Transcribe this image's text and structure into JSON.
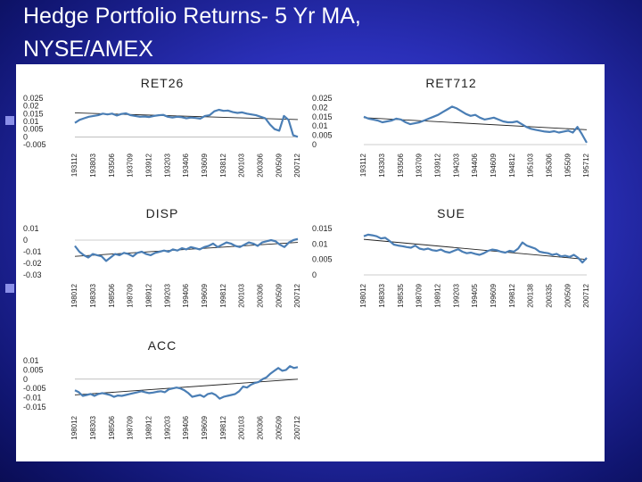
{
  "slide": {
    "title_line1": "Hedge Portfolio Returns- 5 Yr MA,",
    "title_line2": "NYSE/AMEX"
  },
  "colors": {
    "series": "#4a7eb5",
    "trend": "#222222",
    "axis_text": "#222222"
  },
  "chart_data": [
    {
      "type": "line",
      "title": "RET26",
      "ylim": [
        -0.005,
        0.025
      ],
      "yticks": [
        "0.025",
        "0.02",
        "0.015",
        "0.01",
        "0.005",
        "0",
        "-0.005"
      ],
      "xticks": [
        "193112",
        "193803",
        "193506",
        "193709",
        "193912",
        "193203",
        "193406",
        "193609",
        "193812",
        "200103",
        "200306",
        "200509",
        "200712"
      ],
      "series": [
        {
          "values": [
            0.009,
            0.011,
            0.012,
            0.013,
            0.0135,
            0.014,
            0.015,
            0.0145,
            0.015,
            0.0138,
            0.0148,
            0.0152,
            0.014,
            0.0135,
            0.013,
            0.0132,
            0.0128,
            0.0135,
            0.014,
            0.0142,
            0.013,
            0.0125,
            0.013,
            0.0127,
            0.012,
            0.0125,
            0.0122,
            0.0118,
            0.0135,
            0.014,
            0.0165,
            0.0175,
            0.0168,
            0.017,
            0.016,
            0.0155,
            0.0158,
            0.015,
            0.0145,
            0.014,
            0.013,
            0.012,
            0.008,
            0.005,
            0.004,
            0.0135,
            0.011,
            0.001,
            0.0
          ]
        }
      ],
      "trend": [
        0.0155,
        0.0112
      ]
    },
    {
      "type": "line",
      "title": "RET712",
      "ylim": [
        0,
        0.025
      ],
      "yticks": [
        "0.025",
        "0.02",
        "0.015",
        "0.01",
        "0.005",
        "0"
      ],
      "xticks": [
        "193112",
        "193303",
        "193506",
        "193709",
        "193912",
        "194203",
        "194406",
        "194609",
        "194812",
        "195103",
        "195306",
        "195509",
        "195712"
      ],
      "series": [
        {
          "values": [
            0.015,
            0.014,
            0.0135,
            0.013,
            0.012,
            0.0125,
            0.013,
            0.014,
            0.0135,
            0.012,
            0.011,
            0.0115,
            0.012,
            0.013,
            0.014,
            0.015,
            0.016,
            0.0175,
            0.019,
            0.0205,
            0.0195,
            0.018,
            0.0165,
            0.0155,
            0.016,
            0.0145,
            0.0135,
            0.014,
            0.0145,
            0.0135,
            0.0125,
            0.012,
            0.012,
            0.0125,
            0.011,
            0.0095,
            0.0085,
            0.008,
            0.0075,
            0.007,
            0.0068,
            0.0072,
            0.0065,
            0.007,
            0.0075,
            0.0065,
            0.0095,
            0.0055,
            0.001
          ]
        }
      ],
      "trend": [
        0.0145,
        0.008
      ]
    },
    {
      "type": "line",
      "title": "DISP",
      "ylim": [
        -0.03,
        0.01
      ],
      "yticks": [
        "0.01",
        "0",
        "-0.01",
        "-0.02",
        "-0.03"
      ],
      "xticks": [
        "198012",
        "198303",
        "198506",
        "198709",
        "198912",
        "199203",
        "199406",
        "199609",
        "199812",
        "200103",
        "200306",
        "200509",
        "200712"
      ],
      "series": [
        {
          "values": [
            -0.005,
            -0.01,
            -0.013,
            -0.015,
            -0.012,
            -0.013,
            -0.014,
            -0.018,
            -0.015,
            -0.012,
            -0.013,
            -0.011,
            -0.012,
            -0.014,
            -0.011,
            -0.01,
            -0.012,
            -0.013,
            -0.011,
            -0.01,
            -0.009,
            -0.01,
            -0.008,
            -0.009,
            -0.007,
            -0.008,
            -0.006,
            -0.007,
            -0.008,
            -0.006,
            -0.005,
            -0.003,
            -0.006,
            -0.004,
            -0.002,
            -0.003,
            -0.005,
            -0.006,
            -0.004,
            -0.002,
            -0.003,
            -0.005,
            -0.002,
            -0.001,
            0.0,
            -0.001,
            -0.004,
            -0.006,
            -0.002,
            0.0,
            0.001
          ]
        }
      ],
      "trend": [
        -0.014,
        -0.002
      ]
    },
    {
      "type": "line",
      "title": "SUE",
      "ylim": [
        0,
        0.015
      ],
      "yticks": [
        "0.015",
        "0.01",
        "0.005",
        "0"
      ],
      "xticks": [
        "198012",
        "198303",
        "198535",
        "198709",
        "198912",
        "199203",
        "199405",
        "199609",
        "199812",
        "200138",
        "200335",
        "200509",
        "200712"
      ],
      "series": [
        {
          "values": [
            0.0125,
            0.013,
            0.0128,
            0.0125,
            0.0118,
            0.012,
            0.011,
            0.0098,
            0.0095,
            0.0093,
            0.009,
            0.0088,
            0.0095,
            0.0085,
            0.0082,
            0.0085,
            0.008,
            0.0078,
            0.0082,
            0.0075,
            0.0072,
            0.0078,
            0.0083,
            0.0075,
            0.007,
            0.0072,
            0.0068,
            0.0065,
            0.007,
            0.0078,
            0.0082,
            0.008,
            0.0075,
            0.0072,
            0.0078,
            0.0075,
            0.0085,
            0.0105,
            0.0095,
            0.009,
            0.0085,
            0.0075,
            0.0072,
            0.007,
            0.0065,
            0.0068,
            0.006,
            0.0062,
            0.0058,
            0.0065,
            0.0055,
            0.004,
            0.0055
          ]
        }
      ],
      "trend": [
        0.0115,
        0.005
      ]
    },
    {
      "type": "line",
      "title": "ACC",
      "ylim": [
        -0.015,
        0.01
      ],
      "yticks": [
        "0.01",
        "0.005",
        "0",
        "-0.005",
        "-0.01",
        "-0.015"
      ],
      "xticks": [
        "198012",
        "198303",
        "198506",
        "198709",
        "198912",
        "199203",
        "199406",
        "199609",
        "199812",
        "200103",
        "200306",
        "200509",
        "200712"
      ],
      "series": [
        {
          "values": [
            -0.006,
            -0.007,
            -0.009,
            -0.0085,
            -0.008,
            -0.009,
            -0.008,
            -0.0075,
            -0.008,
            -0.0085,
            -0.0095,
            -0.0088,
            -0.009,
            -0.0085,
            -0.008,
            -0.0075,
            -0.007,
            -0.0065,
            -0.007,
            -0.0075,
            -0.0072,
            -0.0068,
            -0.0065,
            -0.007,
            -0.0055,
            -0.005,
            -0.0045,
            -0.005,
            -0.006,
            -0.0075,
            -0.0095,
            -0.009,
            -0.0085,
            -0.0095,
            -0.008,
            -0.0075,
            -0.0085,
            -0.0105,
            -0.0095,
            -0.009,
            -0.0085,
            -0.008,
            -0.0065,
            -0.004,
            -0.0045,
            -0.003,
            -0.002,
            -0.0015,
            0.0,
            0.001,
            0.003,
            0.0045,
            0.006,
            0.0045,
            0.005,
            0.007,
            0.006,
            0.0065
          ]
        }
      ],
      "trend": [
        -0.0085,
        0.0
      ]
    }
  ]
}
